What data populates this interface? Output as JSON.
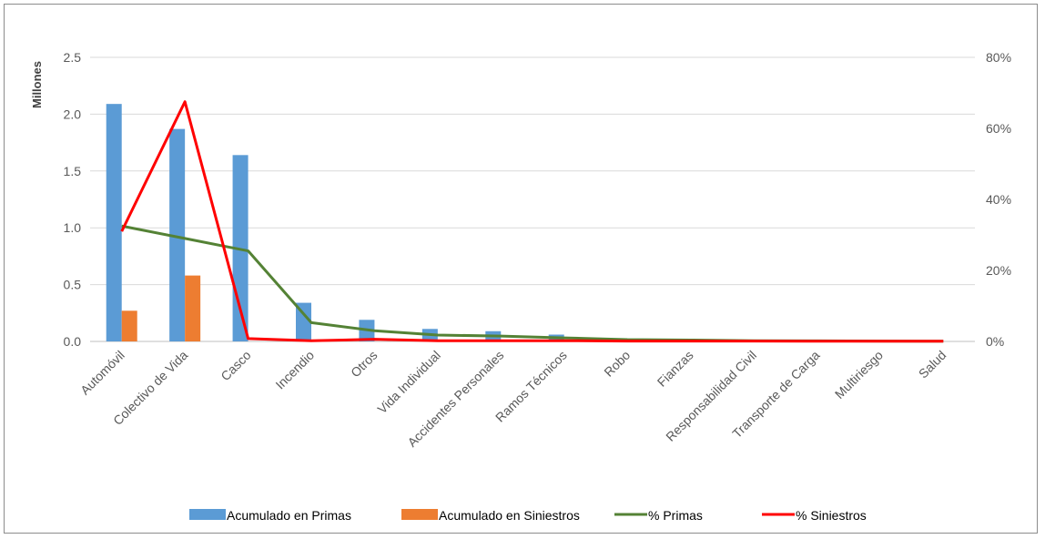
{
  "chart_data": {
    "type": "bar",
    "categories": [
      "Automóvil",
      "Colectivo de Vida",
      "Casco",
      "Incendio",
      "Otros",
      "Vida Individual",
      "Accidentes Personales",
      "Ramos Técnicos",
      "Robo",
      "Fianzas",
      "Responsabilidad Civil",
      "Transporte de Carga",
      "Multiriesgo",
      "Salud"
    ],
    "ylabel": "Millones",
    "ylim": [
      0,
      2.5
    ],
    "y_ticks": [
      "0.0",
      "0.5",
      "1.0",
      "1.5",
      "2.0",
      "2.5"
    ],
    "y2lim": [
      0,
      0.8
    ],
    "y2_ticks": [
      "0%",
      "20%",
      "40%",
      "60%",
      "80%"
    ],
    "grid": true,
    "legend_position": "bottom",
    "series": [
      {
        "name": "Acumulado en Primas",
        "kind": "bar",
        "axis": "left",
        "color": "#5b9bd5",
        "values": [
          2.09,
          1.87,
          1.64,
          0.34,
          0.19,
          0.11,
          0.09,
          0.06,
          0.02,
          0.02,
          0.01,
          0.01,
          0.005,
          0.003
        ]
      },
      {
        "name": "Acumulado en Siniestros",
        "kind": "bar",
        "axis": "left",
        "color": "#ed7d31",
        "values": [
          0.27,
          0.58,
          0.0,
          0.0,
          0.0,
          0.0,
          0.0,
          0.0,
          0.0,
          0.0,
          0.0,
          0.0,
          0.0,
          0.0
        ]
      },
      {
        "name": "% Primas",
        "kind": "line",
        "axis": "right",
        "color": "#548235",
        "values": [
          0.325,
          0.29,
          0.255,
          0.053,
          0.03,
          0.018,
          0.015,
          0.01,
          0.005,
          0.004,
          0.002,
          0.0015,
          0.001,
          0.0005
        ]
      },
      {
        "name": "% Siniestros",
        "kind": "line",
        "axis": "right",
        "color": "#ff0000",
        "values": [
          0.31,
          0.675,
          0.008,
          0.002,
          0.006,
          0.002,
          0.002,
          0.002,
          0.001,
          0.001,
          0.001,
          0.0005,
          0.0005,
          0.0005
        ]
      }
    ]
  }
}
